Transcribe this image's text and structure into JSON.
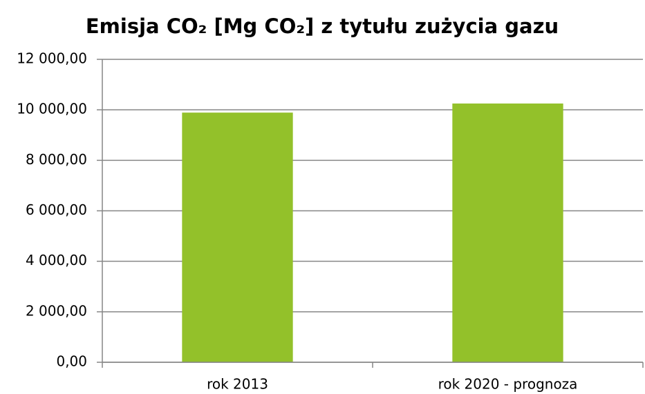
{
  "chart_data": {
    "type": "bar",
    "title": "Emisja CO₂ [Mg CO₂] z tytułu zużycia gazu",
    "categories": [
      "rok 2013",
      "rok 2020 - prognoza"
    ],
    "values": [
      9890,
      10250
    ],
    "color": "#93c12a",
    "ylim": [
      0,
      12000
    ],
    "yticks": [
      {
        "value": 0,
        "label": "0,00"
      },
      {
        "value": 2000,
        "label": "2 000,00"
      },
      {
        "value": 4000,
        "label": "4 000,00"
      },
      {
        "value": 6000,
        "label": "6 000,00"
      },
      {
        "value": 8000,
        "label": "8 000,00"
      },
      {
        "value": 10000,
        "label": "10 000,00"
      },
      {
        "value": 12000,
        "label": "12 000,00"
      }
    ],
    "grid": true
  }
}
